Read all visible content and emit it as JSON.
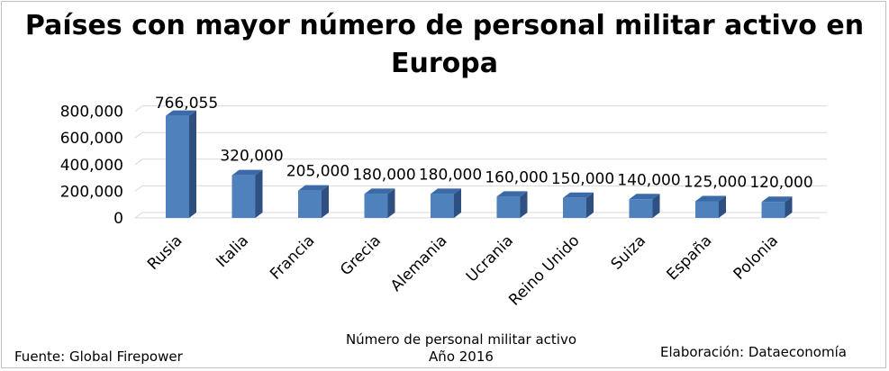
{
  "chart_data": {
    "type": "bar",
    "title": [
      "Países con mayor número de personal militar activo en",
      "Europa"
    ],
    "categories": [
      "Rusia",
      "Italia",
      "Francia",
      "Grecia",
      "Alemania",
      "Ucrania",
      "Reino Unido",
      "Suiza",
      "España",
      "Polonia"
    ],
    "values": [
      766055,
      320000,
      205000,
      180000,
      180000,
      160000,
      150000,
      140000,
      125000,
      120000
    ],
    "value_labels": [
      "766,055",
      "320,000",
      "205,000",
      "180,000",
      "180,000",
      "160,000",
      "150,000",
      "140,000",
      "125,000",
      "120,000"
    ],
    "y_ticks": [
      "0",
      "200,000",
      "400,000",
      "600,000",
      "800,000"
    ],
    "y_tick_values": [
      0,
      200000,
      400000,
      600000,
      800000
    ],
    "ylim": [
      0,
      800000
    ],
    "xlabel": [
      "Número de personal militar activo",
      "Año 2016"
    ],
    "ylabel": "",
    "grid": true,
    "bar_color": "#4f81bd"
  },
  "footer": {
    "source": "Fuente: Global Firepower",
    "credit": "Elaboración: Dataeconomía"
  }
}
